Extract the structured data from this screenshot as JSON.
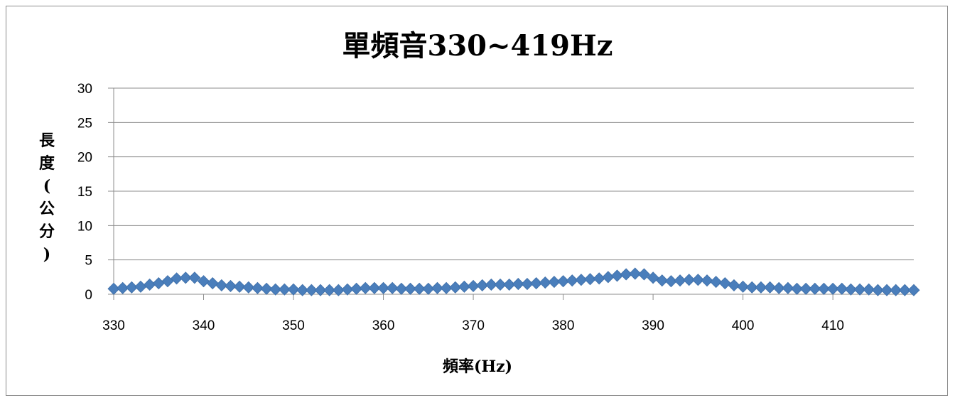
{
  "chart_data": {
    "type": "scatter",
    "title": "單頻音330~419Hz",
    "xlabel": "頻率(Hz)",
    "ylabel": "長度(公分)",
    "xlim": [
      330,
      419
    ],
    "ylim": [
      0,
      30
    ],
    "x_ticks": [
      330,
      340,
      350,
      360,
      370,
      380,
      390,
      400,
      410
    ],
    "y_ticks": [
      0,
      5,
      10,
      15,
      20,
      25,
      30
    ],
    "grid": "horizontal",
    "legend": "none",
    "marker": "diamond",
    "color": "#4a7ebb",
    "x": [
      330,
      331,
      332,
      333,
      334,
      335,
      336,
      337,
      338,
      339,
      340,
      341,
      342,
      343,
      344,
      345,
      346,
      347,
      348,
      349,
      350,
      351,
      352,
      353,
      354,
      355,
      356,
      357,
      358,
      359,
      360,
      361,
      362,
      363,
      364,
      365,
      366,
      367,
      368,
      369,
      370,
      371,
      372,
      373,
      374,
      375,
      376,
      377,
      378,
      379,
      380,
      381,
      382,
      383,
      384,
      385,
      386,
      387,
      388,
      389,
      390,
      391,
      392,
      393,
      394,
      395,
      396,
      397,
      398,
      399,
      400,
      401,
      402,
      403,
      404,
      405,
      406,
      407,
      408,
      409,
      410,
      411,
      412,
      413,
      414,
      415,
      416,
      417,
      418,
      419
    ],
    "y": [
      0.8,
      0.9,
      1.0,
      1.1,
      1.4,
      1.6,
      1.9,
      2.3,
      2.4,
      2.4,
      1.9,
      1.6,
      1.3,
      1.2,
      1.1,
      1.0,
      0.9,
      0.8,
      0.7,
      0.7,
      0.7,
      0.6,
      0.6,
      0.6,
      0.6,
      0.6,
      0.7,
      0.8,
      0.9,
      0.9,
      0.9,
      0.9,
      0.8,
      0.8,
      0.8,
      0.8,
      0.9,
      0.9,
      1.0,
      1.1,
      1.2,
      1.3,
      1.4,
      1.4,
      1.4,
      1.5,
      1.5,
      1.6,
      1.7,
      1.8,
      1.9,
      2.0,
      2.1,
      2.2,
      2.3,
      2.5,
      2.7,
      2.9,
      3.0,
      2.9,
      2.4,
      2.0,
      1.9,
      2.0,
      2.1,
      2.1,
      2.0,
      1.8,
      1.6,
      1.3,
      1.1,
      1.0,
      1.0,
      1.0,
      0.9,
      0.9,
      0.8,
      0.8,
      0.8,
      0.8,
      0.8,
      0.8,
      0.7,
      0.7,
      0.7,
      0.6,
      0.6,
      0.6,
      0.6,
      0.6
    ]
  }
}
